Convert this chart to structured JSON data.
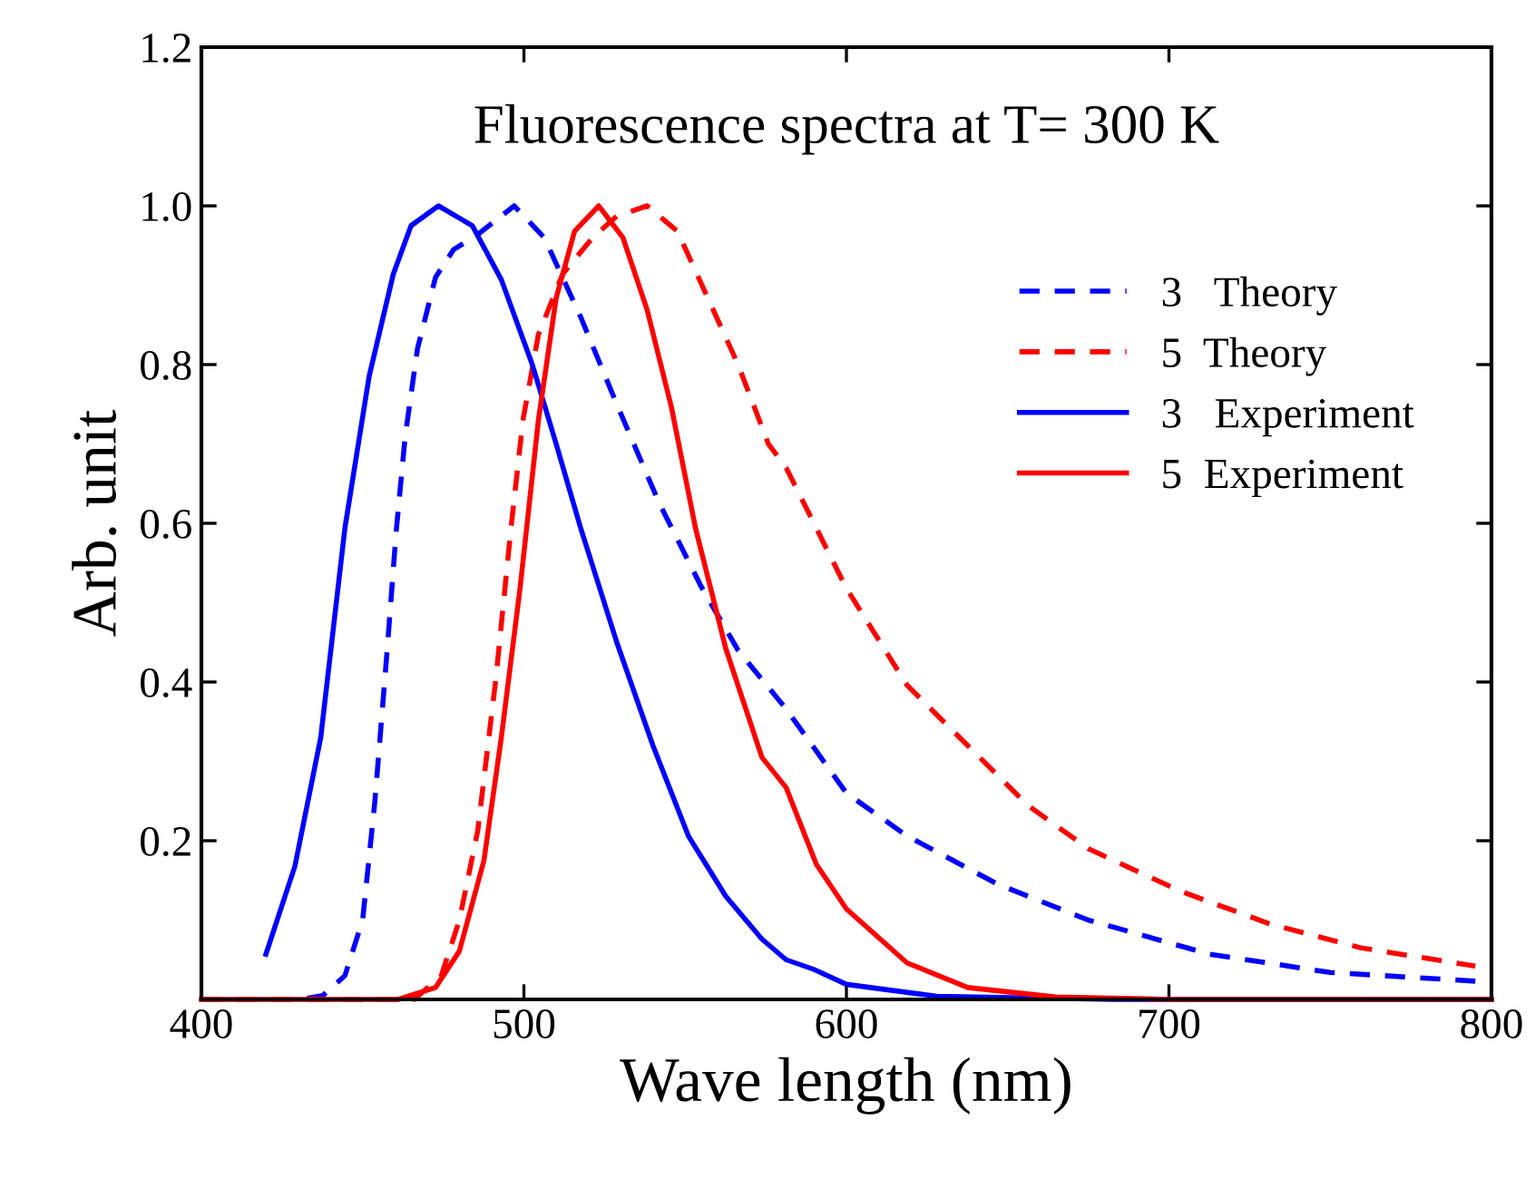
{
  "chart_data": {
    "type": "line",
    "xlabel": "Wave length (nm)",
    "ylabel": "Arb. unit",
    "annotations": [
      "Fluorescence spectra at T= 300 K"
    ],
    "xlim": [
      400,
      800
    ],
    "xticks": [
      400,
      500,
      600,
      700,
      800
    ],
    "ylim": [
      0,
      1.2
    ],
    "yticks": [
      {
        "value": 0,
        "label": null
      },
      0.2,
      0.4,
      0.6,
      0.8,
      {
        "value": 1,
        "label": "1.0"
      },
      1.2
    ],
    "grid": false,
    "legend": "top right",
    "marker": "none",
    "series": [
      {
        "name": "3   Theory",
        "color": "#0000ff",
        "line_style": "dashed",
        "x": [
          400,
          431,
          437.7,
          444.5,
          450,
          453.8,
          457.6,
          460.4,
          463.2,
          467,
          472.6,
          478.2,
          485.7,
          497,
          506.3,
          517.6,
          528.8,
          542,
          555,
          566.4,
          581.3,
          600,
          618.8,
          647,
          675,
          712.6,
          750,
          795
        ],
        "values": [
          0,
          0,
          0.005,
          0.03,
          0.1,
          0.25,
          0.44,
          0.59,
          0.71,
          0.82,
          0.91,
          0.945,
          0.964,
          1.0,
          0.96,
          0.86,
          0.75,
          0.625,
          0.52,
          0.44,
          0.366,
          0.26,
          0.206,
          0.145,
          0.1,
          0.057,
          0.034,
          0.023
        ]
      },
      {
        "name": "5  Theory",
        "color": "#ff0000",
        "line_style": "dashed",
        "x": [
          400,
          466,
          474.4,
          480,
          485.7,
          491.3,
          496,
          499.7,
          504.5,
          512,
          521.3,
          528.8,
          538.2,
          547.6,
          557,
          566.4,
          575.8,
          581.3,
          600,
          618.8,
          637.6,
          656.4,
          675,
          703.2,
          731.4,
          759.5,
          795
        ],
        "values": [
          0,
          0,
          0.03,
          0.1,
          0.213,
          0.404,
          0.594,
          0.73,
          0.838,
          0.914,
          0.96,
          0.987,
          1.0,
          0.968,
          0.884,
          0.8,
          0.7,
          0.67,
          0.518,
          0.396,
          0.32,
          0.244,
          0.19,
          0.137,
          0.095,
          0.065,
          0.042
        ]
      },
      {
        "name": "3   Experiment",
        "color": "#0000ff",
        "line_style": "solid",
        "x": [
          420,
          429,
          437,
          444.5,
          452,
          459.5,
          465,
          473.5,
          484,
          493,
          502.6,
          510,
          517.6,
          528.8,
          540,
          551,
          562.6,
          573.8,
          581.3,
          589.8,
          600,
          628,
          683,
          800
        ],
        "values": [
          0.057,
          0.168,
          0.33,
          0.594,
          0.785,
          0.914,
          0.975,
          1.0,
          0.975,
          0.907,
          0.8,
          0.7,
          0.594,
          0.45,
          0.32,
          0.206,
          0.13,
          0.076,
          0.05,
          0.038,
          0.019,
          0.004,
          0,
          0
        ]
      },
      {
        "name": "5  Experiment",
        "color": "#ff0000",
        "line_style": "solid",
        "x": [
          400,
          461,
          472.6,
          480,
          487.6,
          493,
          498.8,
          504.5,
          510,
          515.7,
          523.2,
          530.7,
          538.2,
          545.7,
          553.2,
          562.6,
          573.8,
          581.3,
          590.7,
          600,
          618.8,
          637.6,
          665,
          700,
          800
        ],
        "values": [
          0,
          0,
          0.015,
          0.061,
          0.175,
          0.33,
          0.518,
          0.73,
          0.884,
          0.968,
          1.0,
          0.96,
          0.869,
          0.747,
          0.594,
          0.442,
          0.305,
          0.267,
          0.17,
          0.114,
          0.046,
          0.015,
          0.003,
          0,
          0
        ]
      }
    ]
  }
}
